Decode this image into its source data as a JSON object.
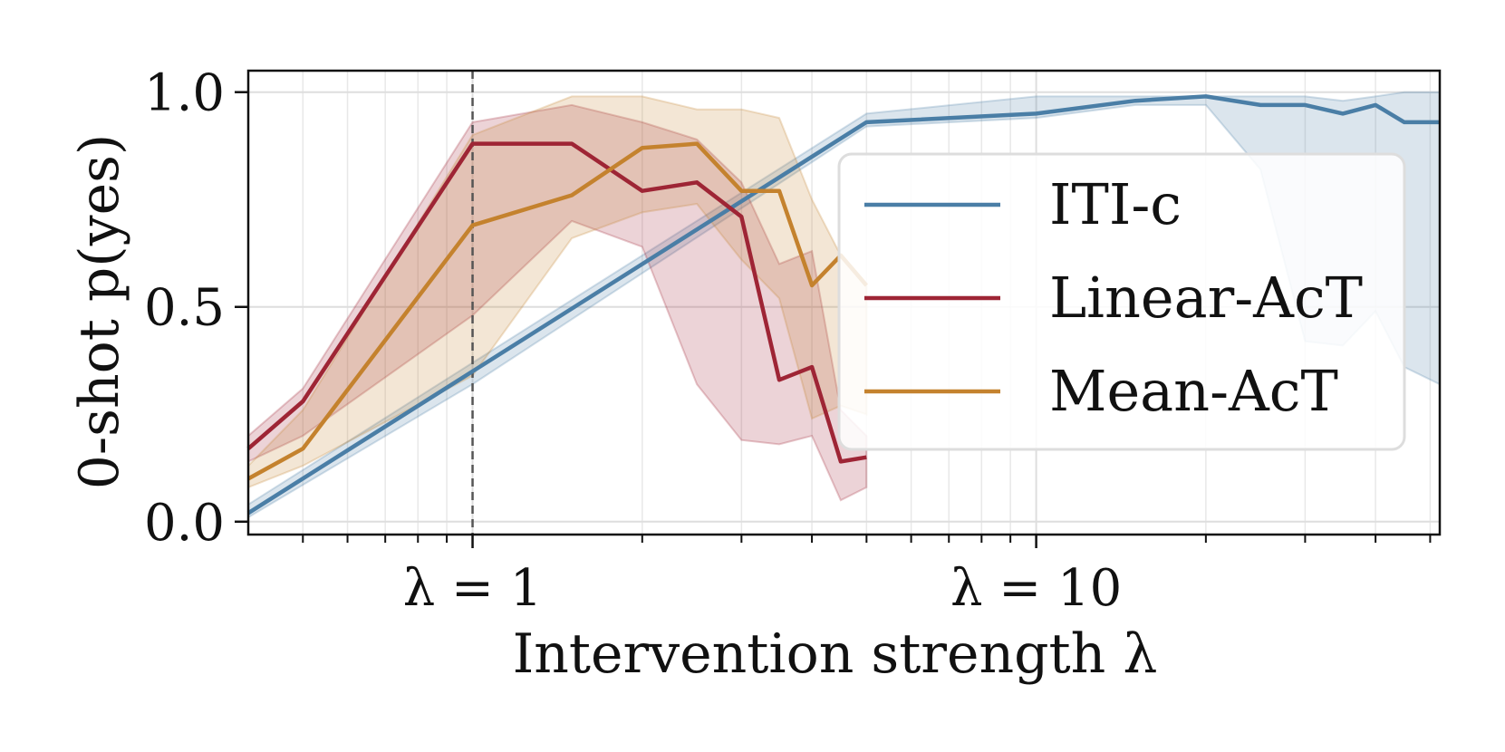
{
  "chart_data": {
    "type": "line",
    "xscale": "log",
    "xlim": [
      0.4,
      52
    ],
    "ylim": [
      -0.03,
      1.05
    ],
    "grid": true,
    "xlabel": "Intervention strength λ",
    "ylabel": "0-shot p(yes)",
    "xtick_labels": [
      {
        "x": 1,
        "label": "λ = 1"
      },
      {
        "x": 10,
        "label": "λ = 10"
      }
    ],
    "yticks": [
      {
        "y": 0.0,
        "label": "0.0"
      },
      {
        "y": 0.5,
        "label": "0.5"
      },
      {
        "y": 1.0,
        "label": "1.0"
      }
    ],
    "vline": {
      "x": 1,
      "style": "dashed"
    },
    "legend_position": "center-right",
    "series": [
      {
        "name": "ITI-c",
        "color": "#4a7ea6",
        "x": [
          0.4,
          1.0,
          5.0,
          10,
          15,
          20,
          25,
          30,
          35,
          40,
          45,
          52
        ],
        "mean": [
          0.02,
          0.35,
          0.93,
          0.95,
          0.98,
          0.99,
          0.97,
          0.97,
          0.95,
          0.97,
          0.93,
          0.93
        ],
        "lower": [
          0.01,
          0.32,
          0.92,
          0.94,
          0.97,
          0.97,
          0.82,
          0.42,
          0.41,
          0.49,
          0.36,
          0.32
        ],
        "upper": [
          0.04,
          0.37,
          0.95,
          0.99,
          0.99,
          0.99,
          0.99,
          0.99,
          0.98,
          0.99,
          1.0,
          1.0
        ]
      },
      {
        "name": "Linear-AcT",
        "color": "#9e2535",
        "x": [
          0.4,
          0.5,
          1.0,
          1.5,
          2.0,
          2.5,
          3.0,
          3.5,
          4.0,
          4.5,
          5.0
        ],
        "mean": [
          0.17,
          0.28,
          0.88,
          0.88,
          0.77,
          0.79,
          0.71,
          0.33,
          0.36,
          0.14,
          0.15
        ],
        "lower": [
          0.14,
          0.2,
          0.48,
          0.7,
          0.64,
          0.32,
          0.19,
          0.18,
          0.2,
          0.05,
          0.08
        ],
        "upper": [
          0.2,
          0.31,
          0.93,
          0.97,
          0.93,
          0.89,
          0.79,
          0.6,
          0.63,
          0.26,
          0.2
        ]
      },
      {
        "name": "Mean-AcT",
        "color": "#c4822e",
        "x": [
          0.4,
          0.5,
          1.0,
          1.5,
          2.0,
          2.5,
          3.0,
          3.5,
          4.0,
          4.5,
          5.0
        ],
        "mean": [
          0.1,
          0.17,
          0.69,
          0.76,
          0.87,
          0.88,
          0.77,
          0.77,
          0.55,
          0.62,
          0.55
        ],
        "lower": [
          0.08,
          0.13,
          0.34,
          0.66,
          0.72,
          0.74,
          0.61,
          0.52,
          0.24,
          0.27,
          0.25
        ],
        "upper": [
          0.13,
          0.26,
          0.9,
          0.99,
          0.99,
          0.96,
          0.96,
          0.94,
          0.75,
          0.62,
          0.55
        ]
      }
    ]
  },
  "legend": {
    "items": [
      "ITI-c",
      "Linear-AcT",
      "Mean-AcT"
    ]
  }
}
